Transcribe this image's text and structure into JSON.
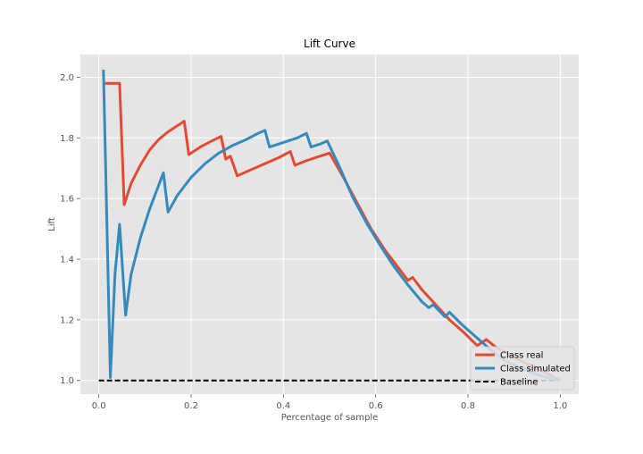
{
  "chart_data": {
    "type": "line",
    "title": "Lift Curve",
    "xlabel": "Percentage of sample",
    "ylabel": "Lift",
    "xlim": [
      -0.04,
      1.04
    ],
    "ylim": [
      0.955,
      2.075
    ],
    "xticks": [
      0.0,
      0.2,
      0.4,
      0.6,
      0.8,
      1.0
    ],
    "xtick_labels": [
      "0.0",
      "0.2",
      "0.4",
      "0.6",
      "0.8",
      "1.0"
    ],
    "yticks": [
      1.0,
      1.2,
      1.4,
      1.6,
      1.8,
      2.0
    ],
    "ytick_labels": [
      "1.0",
      "1.2",
      "1.4",
      "1.6",
      "1.8",
      "2.0"
    ],
    "grid": true,
    "legend_position": "lower-right",
    "colors": {
      "plot_background": "#e5e5e5",
      "grid": "#ffffff",
      "Class real": "#e24a33",
      "Class simulated": "#348abd",
      "Baseline": "#000000"
    },
    "series": [
      {
        "name": "Class real",
        "color": "#e24a33",
        "dash": "solid",
        "points": [
          [
            0.01,
            1.98
          ],
          [
            0.045,
            1.98
          ],
          [
            0.055,
            1.58
          ],
          [
            0.07,
            1.65
          ],
          [
            0.09,
            1.71
          ],
          [
            0.11,
            1.76
          ],
          [
            0.13,
            1.795
          ],
          [
            0.15,
            1.82
          ],
          [
            0.17,
            1.84
          ],
          [
            0.185,
            1.855
          ],
          [
            0.195,
            1.745
          ],
          [
            0.22,
            1.77
          ],
          [
            0.245,
            1.79
          ],
          [
            0.265,
            1.805
          ],
          [
            0.275,
            1.73
          ],
          [
            0.285,
            1.74
          ],
          [
            0.3,
            1.675
          ],
          [
            0.33,
            1.695
          ],
          [
            0.36,
            1.715
          ],
          [
            0.39,
            1.735
          ],
          [
            0.415,
            1.755
          ],
          [
            0.425,
            1.71
          ],
          [
            0.45,
            1.725
          ],
          [
            0.47,
            1.735
          ],
          [
            0.5,
            1.75
          ],
          [
            0.53,
            1.67
          ],
          [
            0.56,
            1.585
          ],
          [
            0.59,
            1.5
          ],
          [
            0.62,
            1.43
          ],
          [
            0.65,
            1.37
          ],
          [
            0.67,
            1.33
          ],
          [
            0.68,
            1.34
          ],
          [
            0.7,
            1.3
          ],
          [
            0.73,
            1.25
          ],
          [
            0.76,
            1.2
          ],
          [
            0.79,
            1.16
          ],
          [
            0.82,
            1.115
          ],
          [
            0.84,
            1.135
          ],
          [
            0.86,
            1.11
          ],
          [
            0.89,
            1.085
          ],
          [
            0.92,
            1.06
          ],
          [
            0.95,
            1.04
          ],
          [
            0.975,
            1.02
          ],
          [
            1.0,
            1.0
          ]
        ]
      },
      {
        "name": "Class simulated",
        "color": "#348abd",
        "dash": "solid",
        "points": [
          [
            0.01,
            2.025
          ],
          [
            0.025,
            1.01
          ],
          [
            0.035,
            1.35
          ],
          [
            0.045,
            1.515
          ],
          [
            0.058,
            1.215
          ],
          [
            0.07,
            1.35
          ],
          [
            0.09,
            1.47
          ],
          [
            0.11,
            1.565
          ],
          [
            0.125,
            1.625
          ],
          [
            0.14,
            1.685
          ],
          [
            0.15,
            1.555
          ],
          [
            0.17,
            1.61
          ],
          [
            0.2,
            1.67
          ],
          [
            0.23,
            1.715
          ],
          [
            0.26,
            1.75
          ],
          [
            0.29,
            1.775
          ],
          [
            0.32,
            1.795
          ],
          [
            0.345,
            1.815
          ],
          [
            0.36,
            1.825
          ],
          [
            0.37,
            1.77
          ],
          [
            0.4,
            1.785
          ],
          [
            0.43,
            1.8
          ],
          [
            0.45,
            1.815
          ],
          [
            0.46,
            1.77
          ],
          [
            0.48,
            1.78
          ],
          [
            0.495,
            1.79
          ],
          [
            0.52,
            1.71
          ],
          [
            0.55,
            1.605
          ],
          [
            0.58,
            1.52
          ],
          [
            0.61,
            1.445
          ],
          [
            0.64,
            1.375
          ],
          [
            0.67,
            1.315
          ],
          [
            0.7,
            1.26
          ],
          [
            0.715,
            1.24
          ],
          [
            0.725,
            1.25
          ],
          [
            0.75,
            1.21
          ],
          [
            0.76,
            1.225
          ],
          [
            0.79,
            1.18
          ],
          [
            0.82,
            1.14
          ],
          [
            0.85,
            1.1
          ],
          [
            0.88,
            1.065
          ],
          [
            0.91,
            1.045
          ],
          [
            0.94,
            1.025
          ],
          [
            0.97,
            1.01
          ],
          [
            1.0,
            1.0
          ]
        ]
      },
      {
        "name": "Baseline",
        "color": "#000000",
        "dash": "dashed",
        "points": [
          [
            0.0,
            1.0
          ],
          [
            1.0,
            1.0
          ]
        ]
      }
    ]
  }
}
